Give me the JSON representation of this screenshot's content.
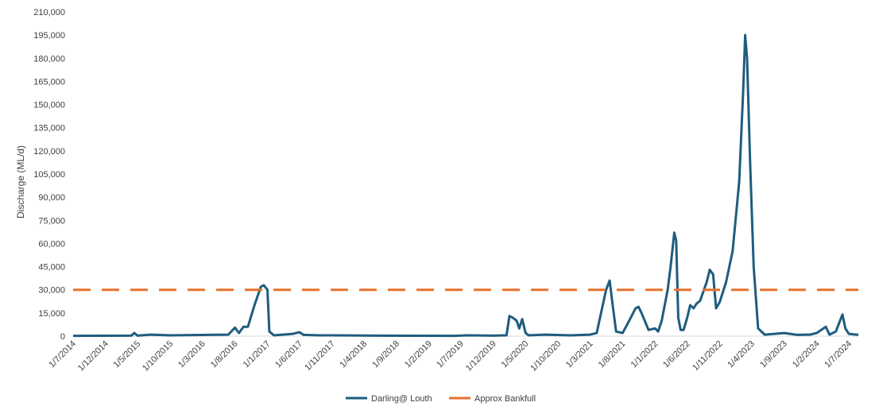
{
  "chart_data": {
    "type": "line",
    "title": "",
    "xlabel": "",
    "ylabel": "Discharge (ML/d)",
    "ylim": [
      0,
      210000
    ],
    "yticks": [
      "0",
      "15,000",
      "30,000",
      "45,000",
      "60,000",
      "75,000",
      "90,000",
      "105,000",
      "120,000",
      "135,000",
      "150,000",
      "165,000",
      "180,000",
      "195,000",
      "210,000"
    ],
    "xlim": [
      "2014-07-01",
      "2024-08-15"
    ],
    "xticks": [
      "1/7/2014",
      "1/12/2014",
      "1/5/2015",
      "1/10/2015",
      "1/3/2016",
      "1/8/2016",
      "1/1/2017",
      "1/6/2017",
      "1/11/2017",
      "1/4/2018",
      "1/9/2018",
      "1/2/2019",
      "1/7/2019",
      "1/12/2019",
      "1/5/2020",
      "1/10/2020",
      "1/3/2021",
      "1/8/2021",
      "1/1/2022",
      "1/6/2022",
      "1/11/2022",
      "1/4/2023",
      "1/9/2023",
      "1/2/2024",
      "1/7/2024"
    ],
    "grid": false,
    "legend_position": "bottom",
    "series": [
      {
        "name": "Darling@ Louth",
        "color": "#1f5c7e",
        "style": "solid",
        "points": [
          [
            "2014-07-01",
            200
          ],
          [
            "2015-04-01",
            300
          ],
          [
            "2015-04-15",
            2000
          ],
          [
            "2015-05-01",
            300
          ],
          [
            "2015-07-01",
            1000
          ],
          [
            "2015-10-01",
            500
          ],
          [
            "2016-04-01",
            800
          ],
          [
            "2016-07-01",
            1000
          ],
          [
            "2016-08-01",
            5500
          ],
          [
            "2016-08-20",
            2000
          ],
          [
            "2016-09-10",
            6000
          ],
          [
            "2016-10-01",
            6000
          ],
          [
            "2016-11-01",
            20000
          ],
          [
            "2016-12-01",
            32000
          ],
          [
            "2016-12-15",
            33000
          ],
          [
            "2017-01-01",
            30000
          ],
          [
            "2017-01-10",
            3000
          ],
          [
            "2017-02-01",
            500
          ],
          [
            "2017-05-01",
            1500
          ],
          [
            "2017-06-01",
            2500
          ],
          [
            "2017-06-20",
            800
          ],
          [
            "2017-09-01",
            500
          ],
          [
            "2017-11-01",
            500
          ],
          [
            "2018-06-01",
            300
          ],
          [
            "2019-06-01",
            200
          ],
          [
            "2019-08-01",
            500
          ],
          [
            "2019-12-01",
            300
          ],
          [
            "2020-02-01",
            500
          ],
          [
            "2020-02-15",
            13000
          ],
          [
            "2020-03-01",
            12000
          ],
          [
            "2020-03-20",
            10000
          ],
          [
            "2020-04-01",
            5000
          ],
          [
            "2020-04-15",
            11000
          ],
          [
            "2020-05-01",
            2000
          ],
          [
            "2020-05-15",
            500
          ],
          [
            "2020-08-01",
            1000
          ],
          [
            "2020-09-01",
            800
          ],
          [
            "2020-12-01",
            500
          ],
          [
            "2021-03-01",
            1000
          ],
          [
            "2021-04-01",
            2000
          ],
          [
            "2021-05-15",
            30000
          ],
          [
            "2021-06-01",
            36000
          ],
          [
            "2021-06-15",
            20000
          ],
          [
            "2021-07-01",
            3000
          ],
          [
            "2021-08-01",
            2000
          ],
          [
            "2021-09-01",
            10000
          ],
          [
            "2021-10-01",
            18000
          ],
          [
            "2021-10-15",
            19000
          ],
          [
            "2021-11-01",
            14000
          ],
          [
            "2021-12-01",
            4000
          ],
          [
            "2022-01-01",
            5000
          ],
          [
            "2022-01-15",
            3000
          ],
          [
            "2022-02-01",
            10000
          ],
          [
            "2022-03-01",
            30000
          ],
          [
            "2022-03-15",
            45000
          ],
          [
            "2022-04-01",
            67000
          ],
          [
            "2022-04-10",
            62000
          ],
          [
            "2022-04-20",
            12000
          ],
          [
            "2022-05-01",
            4000
          ],
          [
            "2022-05-15",
            4000
          ],
          [
            "2022-06-01",
            12000
          ],
          [
            "2022-06-15",
            20000
          ],
          [
            "2022-07-01",
            18000
          ],
          [
            "2022-07-15",
            21000
          ],
          [
            "2022-08-01",
            23000
          ],
          [
            "2022-09-01",
            35000
          ],
          [
            "2022-09-15",
            43000
          ],
          [
            "2022-10-01",
            40000
          ],
          [
            "2022-10-15",
            18000
          ],
          [
            "2022-11-01",
            22000
          ],
          [
            "2022-12-01",
            35000
          ],
          [
            "2023-01-01",
            55000
          ],
          [
            "2023-02-01",
            100000
          ],
          [
            "2023-02-20",
            160000
          ],
          [
            "2023-03-01",
            195000
          ],
          [
            "2023-03-10",
            180000
          ],
          [
            "2023-03-25",
            110000
          ],
          [
            "2023-04-10",
            45000
          ],
          [
            "2023-05-01",
            5000
          ],
          [
            "2023-06-01",
            1000
          ],
          [
            "2023-09-01",
            2000
          ],
          [
            "2023-11-01",
            800
          ],
          [
            "2024-01-01",
            1000
          ],
          [
            "2024-02-01",
            2000
          ],
          [
            "2024-03-15",
            6000
          ],
          [
            "2024-04-01",
            1000
          ],
          [
            "2024-05-01",
            3000
          ],
          [
            "2024-06-01",
            14000
          ],
          [
            "2024-06-15",
            5000
          ],
          [
            "2024-07-01",
            1500
          ],
          [
            "2024-08-15",
            800
          ]
        ]
      },
      {
        "name": "Approx Bankfull",
        "color": "#e8722c",
        "style": "dashed",
        "points": [
          [
            "2014-07-01",
            30000
          ],
          [
            "2024-08-15",
            30000
          ]
        ]
      }
    ]
  }
}
